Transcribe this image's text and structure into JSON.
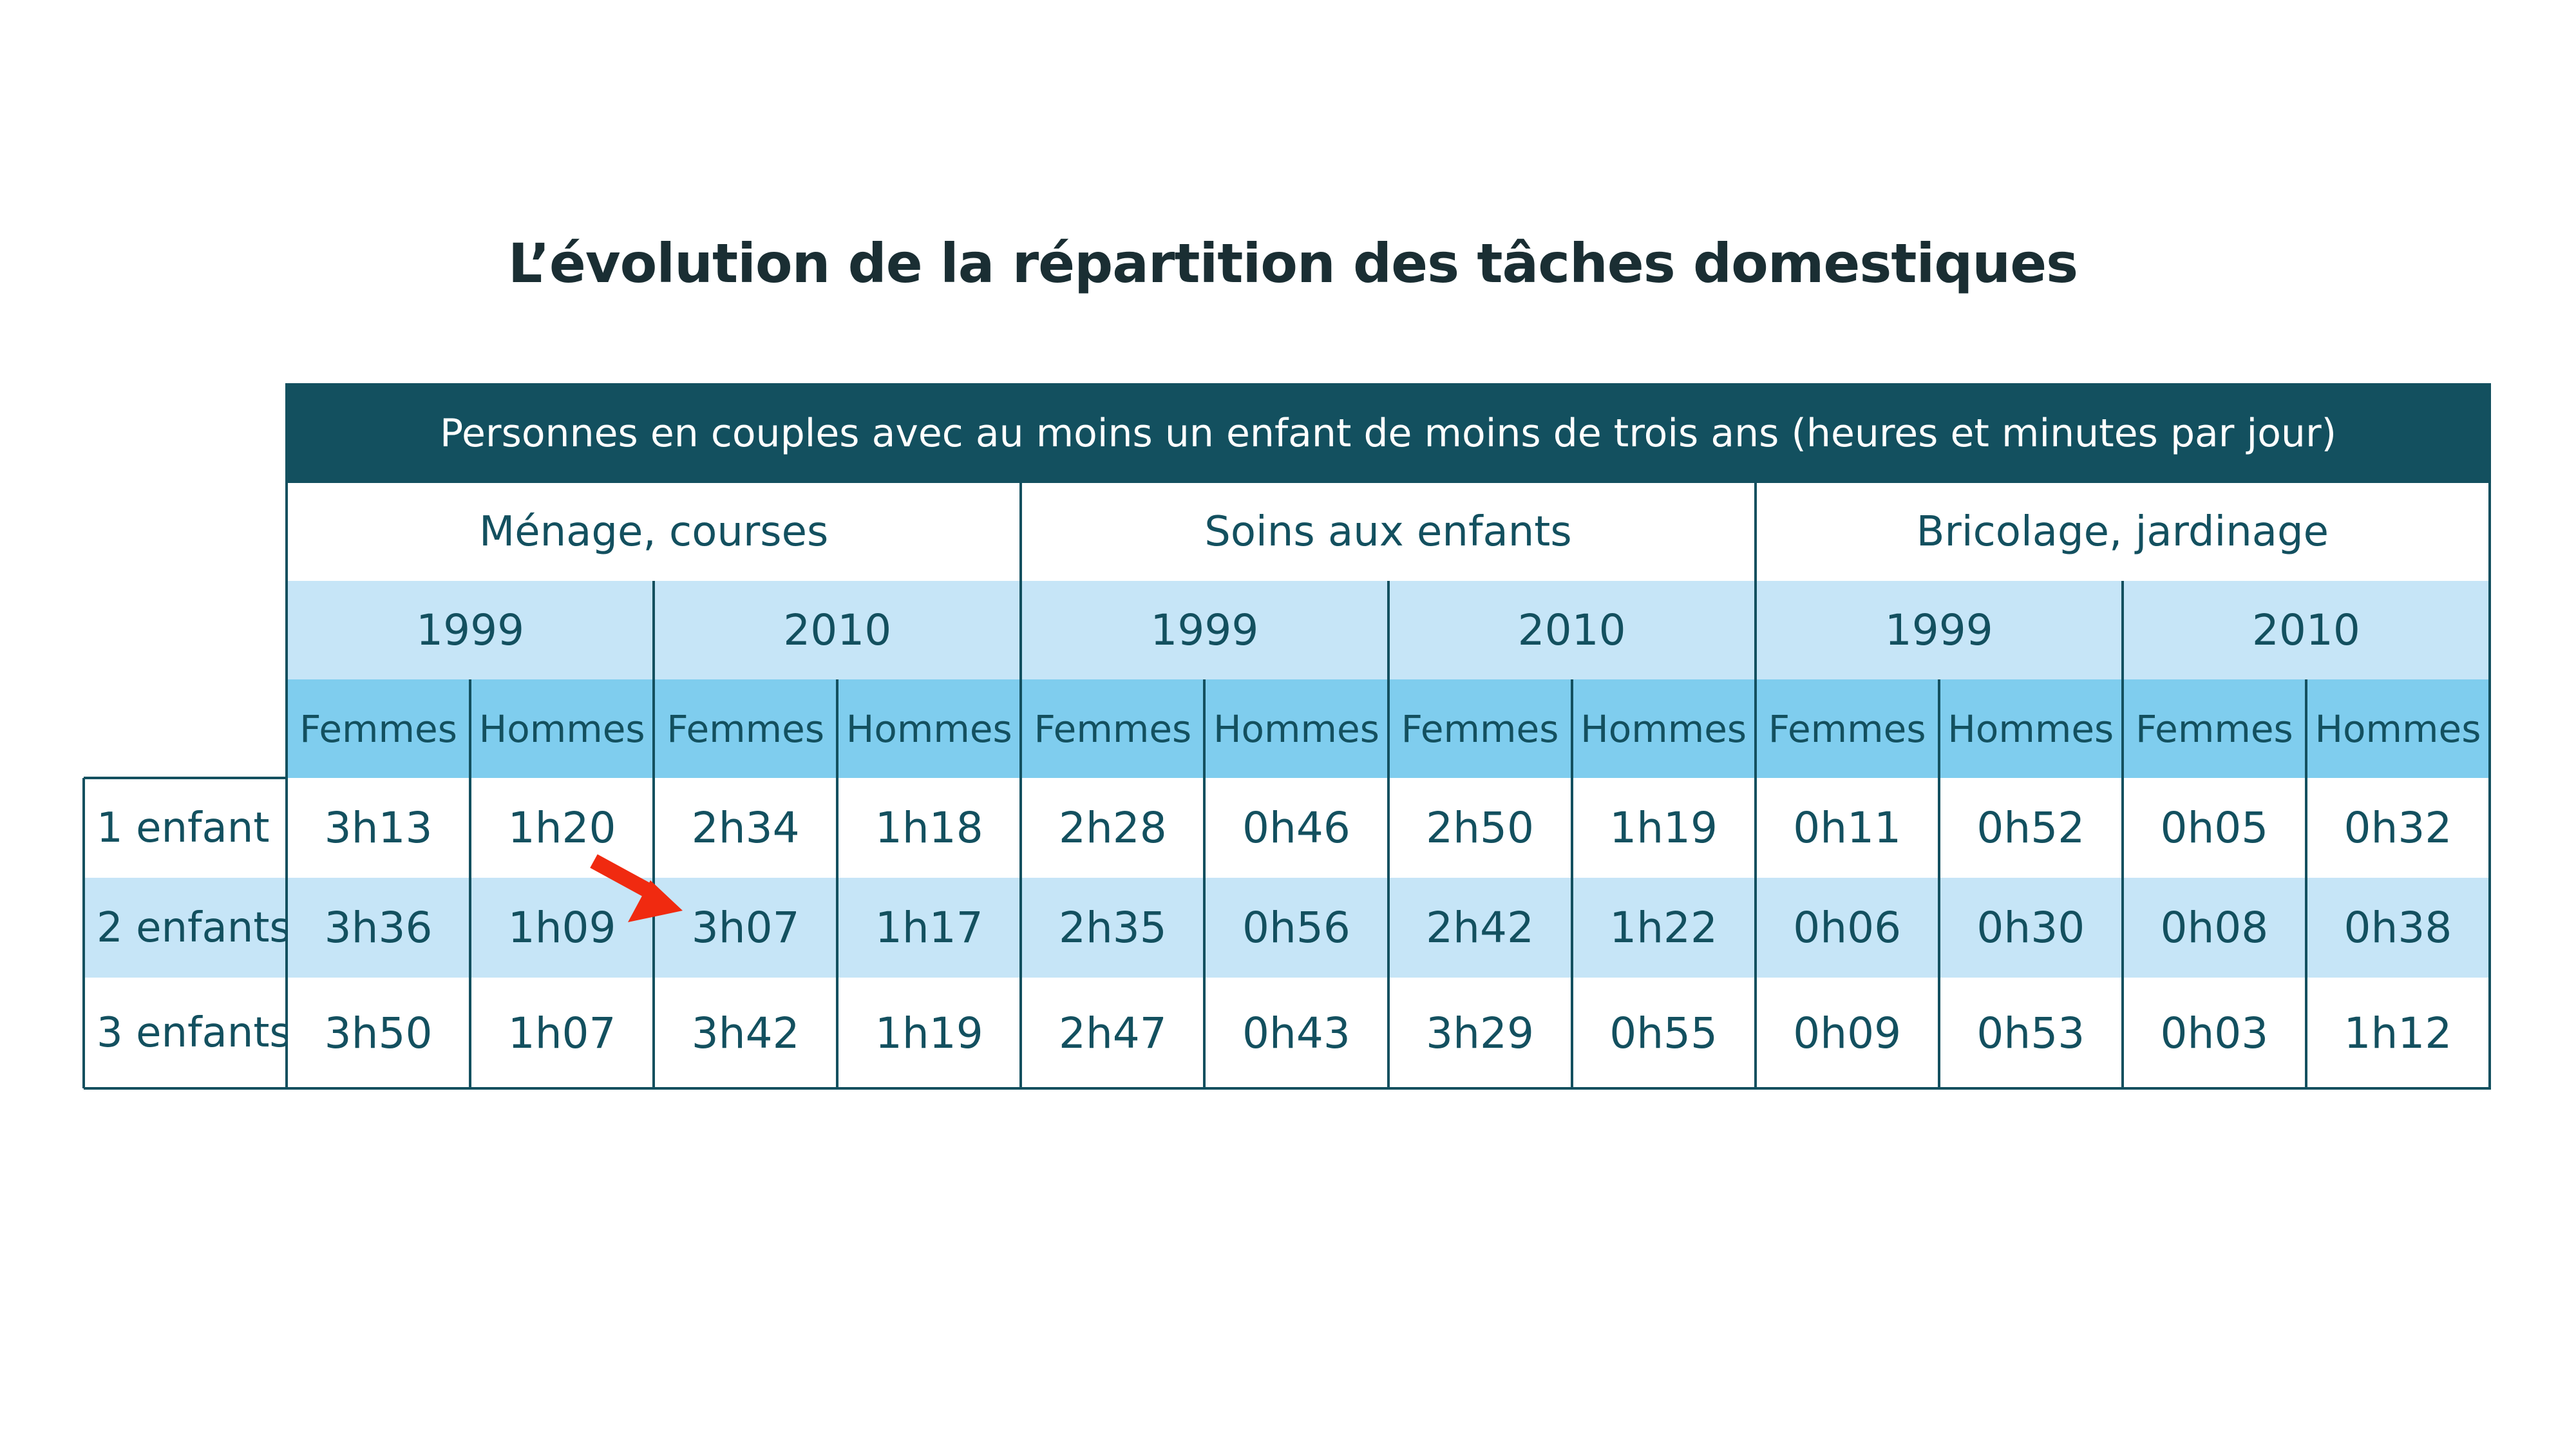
{
  "title": "L’évolution de la répartition des tâches domestiques",
  "table": {
    "header": "Personnes en couples avec au moins un enfant de moins de trois ans (heures et minutes par jour)",
    "categories": [
      "Ménage, courses",
      "Soins aux enfants",
      "Bricolage, jardinage"
    ],
    "years": [
      "1999",
      "2010",
      "1999",
      "2010",
      "1999",
      "2010"
    ],
    "sexes": [
      "Femmes",
      "Hommes",
      "Femmes",
      "Hommes",
      "Femmes",
      "Hommes",
      "Femmes",
      "Hommes",
      "Femmes",
      "Hommes",
      "Femmes",
      "Hommes"
    ],
    "rows": [
      {
        "label": "1 enfant",
        "values": [
          "3h13",
          "1h20",
          "2h34",
          "1h18",
          "2h28",
          "0h46",
          "2h50",
          "1h19",
          "0h11",
          "0h52",
          "0h05",
          "0h32"
        ]
      },
      {
        "label": "2 enfants",
        "values": [
          "3h36",
          "1h09",
          "3h07",
          "1h17",
          "2h35",
          "0h56",
          "2h42",
          "1h22",
          "0h06",
          "0h30",
          "0h08",
          "0h38"
        ]
      },
      {
        "label": "3 enfants",
        "values": [
          "3h50",
          "1h07",
          "3h42",
          "1h19",
          "2h47",
          "0h43",
          "3h29",
          "0h55",
          "0h09",
          "0h53",
          "0h03",
          "1h12"
        ]
      }
    ]
  },
  "annotation": {
    "arrow_color": "#f02a10"
  },
  "colors": {
    "header_bg": "#13505f",
    "year_bg": "#c6e5f7",
    "sex_bg": "#7fcdee",
    "text": "#13505f"
  }
}
